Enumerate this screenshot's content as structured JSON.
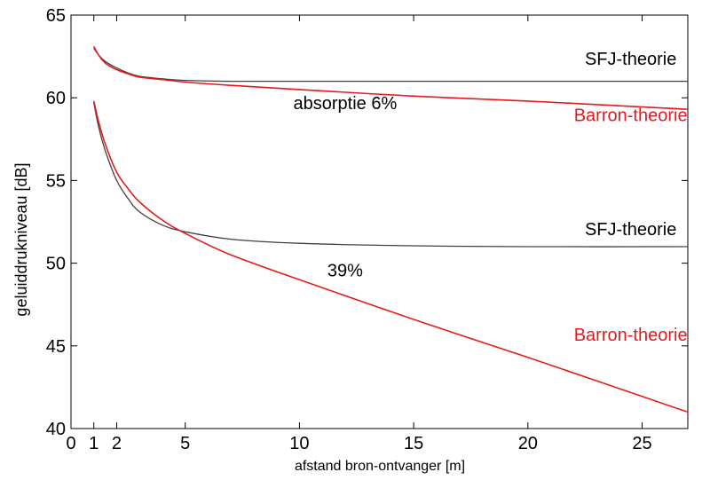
{
  "chart_data": {
    "type": "line",
    "title": "",
    "xlabel": "afstand bron-ontvanger [m]",
    "ylabel": "geluiddrukniveau  [dB]",
    "xlim": [
      0,
      27
    ],
    "ylim": [
      40,
      65
    ],
    "xticks": [
      0,
      1,
      2,
      5,
      10,
      15,
      20,
      25
    ],
    "yticks": [
      40,
      45,
      50,
      55,
      60,
      65
    ],
    "grid": false,
    "colors": {
      "sfj": "#404040",
      "barron": "#e41a1c",
      "axis": "#000000"
    },
    "series": [
      {
        "name": "SFJ-theorie",
        "group": "absorptie 6%",
        "x": [
          1,
          1.2,
          1.5,
          2,
          2.5,
          3,
          4,
          5,
          7,
          10,
          15,
          20,
          27
        ],
        "y": [
          63.0,
          62.6,
          62.2,
          61.8,
          61.5,
          61.3,
          61.15,
          61.05,
          61.0,
          61.0,
          61.0,
          61.0,
          61.0
        ]
      },
      {
        "name": "Barron-theorie",
        "group": "absorptie 6%",
        "x": [
          1,
          1.2,
          1.5,
          2,
          2.5,
          3,
          4,
          5,
          7,
          10,
          15,
          20,
          27
        ],
        "y": [
          63.1,
          62.6,
          62.1,
          61.7,
          61.45,
          61.25,
          61.1,
          60.95,
          60.75,
          60.5,
          60.1,
          59.8,
          59.3
        ]
      },
      {
        "name": "SFJ-theorie",
        "group": "39%",
        "x": [
          1,
          1.2,
          1.5,
          2,
          2.5,
          3,
          4,
          5,
          7,
          10,
          15,
          20,
          27
        ],
        "y": [
          59.7,
          58.3,
          56.8,
          55.0,
          53.9,
          53.1,
          52.3,
          51.9,
          51.45,
          51.2,
          51.05,
          51.0,
          51.0
        ]
      },
      {
        "name": "Barron-theorie",
        "group": "39%",
        "x": [
          1,
          1.2,
          1.5,
          2,
          2.5,
          3,
          4,
          5,
          7,
          10,
          15,
          20,
          27
        ],
        "y": [
          59.8,
          58.6,
          57.2,
          55.5,
          54.5,
          53.7,
          52.6,
          51.8,
          50.5,
          49.0,
          46.6,
          44.3,
          41.0
        ]
      }
    ],
    "annotations": [
      {
        "text": "SFJ-theorie",
        "x": 24.5,
        "y": 62.0,
        "color": "#000000"
      },
      {
        "text": "Barron-theorie",
        "x": 24.5,
        "y": 58.6,
        "color": "#e41a1c"
      },
      {
        "text": "absorptie 6%",
        "x": 12.0,
        "y": 59.3,
        "color": "#000000"
      },
      {
        "text": "SFJ-theorie",
        "x": 24.5,
        "y": 51.7,
        "color": "#000000"
      },
      {
        "text": "39%",
        "x": 12.0,
        "y": 49.2,
        "color": "#000000"
      },
      {
        "text": "Barron-theorie",
        "x": 24.5,
        "y": 45.3,
        "color": "#e41a1c"
      }
    ]
  }
}
